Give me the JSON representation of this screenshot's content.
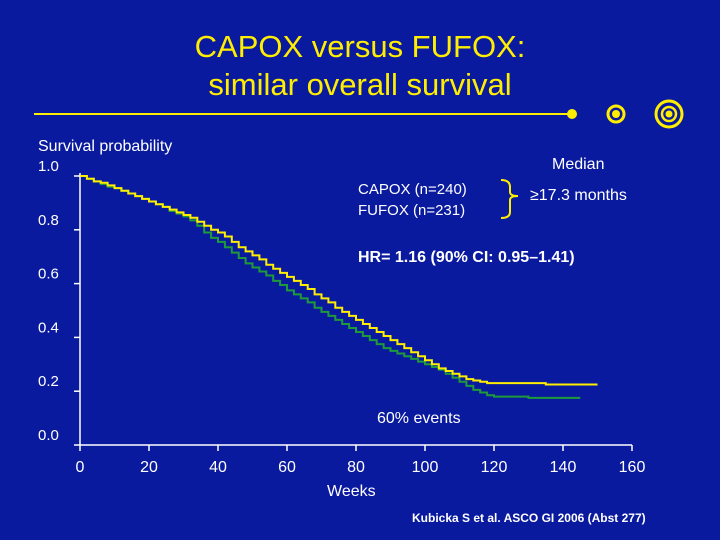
{
  "title_line1": "CAPOX versus FUFOX:",
  "title_line2": "similar overall survival",
  "annotations": {
    "median_header": "Median",
    "median_value": "≥17.3 months",
    "hazard_ratio": "HR= 1.16 (90% CI: 0.95–1.41)",
    "events": "60% events",
    "citation": "Kubicka S et al. ASCO GI 2006 (Abst 277)"
  },
  "colors": {
    "background": "#0a1a9e",
    "title": "#ffee00",
    "capox": "#ffee00",
    "fufox": "#1f9a3a",
    "text": "#ffffff"
  },
  "chart_data": {
    "type": "line",
    "ylabel": "Survival probability",
    "xlabel": "Weeks",
    "xlim": [
      0,
      160
    ],
    "ylim": [
      0,
      1
    ],
    "x_ticks": [
      "0",
      "20",
      "40",
      "60",
      "80",
      "100",
      "120",
      "140",
      "160"
    ],
    "y_ticks": [
      "0.0",
      "0.2",
      "0.4",
      "0.6",
      "0.8",
      "1.0"
    ],
    "series": [
      {
        "name": "CAPOX (n=240)",
        "color": "#ffee00",
        "x": [
          0,
          2,
          4,
          6,
          8,
          10,
          12,
          14,
          16,
          18,
          20,
          22,
          24,
          26,
          28,
          30,
          32,
          34,
          36,
          38,
          40,
          42,
          44,
          46,
          48,
          50,
          52,
          54,
          56,
          58,
          60,
          62,
          64,
          66,
          68,
          70,
          72,
          74,
          76,
          78,
          80,
          82,
          84,
          86,
          88,
          90,
          92,
          94,
          96,
          98,
          100,
          102,
          104,
          106,
          108,
          110,
          112,
          114,
          116,
          118,
          120,
          125,
          130,
          135,
          140,
          145,
          150
        ],
        "values": [
          1.0,
          0.99,
          0.98,
          0.975,
          0.965,
          0.955,
          0.945,
          0.935,
          0.925,
          0.915,
          0.905,
          0.895,
          0.885,
          0.875,
          0.865,
          0.855,
          0.845,
          0.83,
          0.815,
          0.8,
          0.79,
          0.775,
          0.755,
          0.735,
          0.72,
          0.705,
          0.69,
          0.67,
          0.655,
          0.64,
          0.625,
          0.61,
          0.595,
          0.58,
          0.56,
          0.545,
          0.53,
          0.51,
          0.495,
          0.48,
          0.465,
          0.45,
          0.435,
          0.42,
          0.405,
          0.39,
          0.375,
          0.36,
          0.345,
          0.33,
          0.315,
          0.3,
          0.285,
          0.275,
          0.265,
          0.255,
          0.245,
          0.24,
          0.235,
          0.23,
          0.23,
          0.23,
          0.23,
          0.225,
          0.225,
          0.225,
          0.225
        ]
      },
      {
        "name": "FUFOX (n=231)",
        "color": "#1f9a3a",
        "x": [
          0,
          2,
          4,
          6,
          8,
          10,
          12,
          14,
          16,
          18,
          20,
          22,
          24,
          26,
          28,
          30,
          32,
          34,
          36,
          38,
          40,
          42,
          44,
          46,
          48,
          50,
          52,
          54,
          56,
          58,
          60,
          62,
          64,
          66,
          68,
          70,
          72,
          74,
          76,
          78,
          80,
          82,
          84,
          86,
          88,
          90,
          92,
          94,
          96,
          98,
          100,
          102,
          104,
          106,
          108,
          110,
          112,
          114,
          116,
          118,
          120,
          125,
          130,
          135,
          140,
          145
        ],
        "values": [
          1.0,
          0.99,
          0.98,
          0.97,
          0.96,
          0.955,
          0.945,
          0.935,
          0.925,
          0.915,
          0.905,
          0.895,
          0.885,
          0.87,
          0.86,
          0.85,
          0.835,
          0.815,
          0.79,
          0.77,
          0.755,
          0.735,
          0.715,
          0.695,
          0.675,
          0.66,
          0.645,
          0.63,
          0.61,
          0.595,
          0.575,
          0.56,
          0.545,
          0.53,
          0.51,
          0.495,
          0.48,
          0.465,
          0.45,
          0.435,
          0.42,
          0.405,
          0.39,
          0.375,
          0.36,
          0.35,
          0.34,
          0.33,
          0.32,
          0.31,
          0.3,
          0.29,
          0.28,
          0.265,
          0.25,
          0.235,
          0.22,
          0.205,
          0.195,
          0.185,
          0.18,
          0.18,
          0.175,
          0.175,
          0.175,
          0.175
        ]
      }
    ]
  }
}
